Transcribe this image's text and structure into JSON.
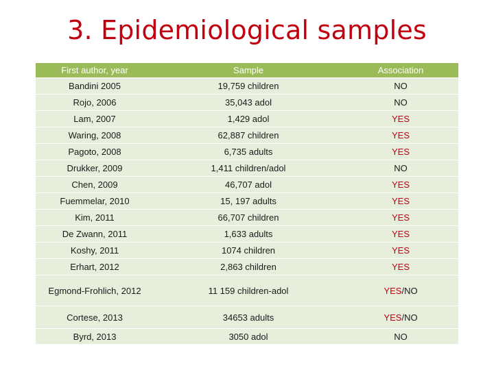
{
  "title": "3. Epidemiological samples",
  "colors": {
    "title": "#c0000f",
    "header_bg": "#9bbb59",
    "row_bg": "#e8eedc",
    "yes": "#c0000f"
  },
  "table": {
    "headers": [
      "First author, year",
      "Sample",
      "Association"
    ],
    "rows": [
      {
        "author": "Bandini 2005",
        "sample": "19,759 children",
        "yes": "",
        "sep": "",
        "no": "NO"
      },
      {
        "author": "Rojo, 2006",
        "sample": "35,043 adol",
        "yes": "",
        "sep": "",
        "no": "NO"
      },
      {
        "author": "Lam, 2007",
        "sample": "1,429 adol",
        "yes": "YES",
        "sep": "",
        "no": ""
      },
      {
        "author": "Waring, 2008",
        "sample": "62,887 children",
        "yes": "YES",
        "sep": "",
        "no": ""
      },
      {
        "author": "Pagoto, 2008",
        "sample": "6,735 adults",
        "yes": "YES",
        "sep": "",
        "no": ""
      },
      {
        "author": "Drukker, 2009",
        "sample": "1,411 children/adol",
        "yes": "",
        "sep": "",
        "no": "NO"
      },
      {
        "author": "Chen, 2009",
        "sample": "46,707 adol",
        "yes": "YES",
        "sep": "",
        "no": ""
      },
      {
        "author": "Fuemmelar, 2010",
        "sample": "15, 197 adults",
        "yes": "YES",
        "sep": "",
        "no": ""
      },
      {
        "author": "Kim, 2011",
        "sample": "66,707 children",
        "yes": "YES",
        "sep": "",
        "no": ""
      },
      {
        "author": "De Zwann, 2011",
        "sample": "1,633 adults",
        "yes": "YES",
        "sep": "",
        "no": ""
      },
      {
        "author": "Koshy, 2011",
        "sample": "1074 children",
        "yes": "YES",
        "sep": "",
        "no": ""
      },
      {
        "author": "Erhart, 2012",
        "sample": "2,863 children",
        "yes": "YES",
        "sep": "",
        "no": ""
      },
      {
        "author": "Egmond-Frohlich, 2012",
        "sample": "11 159 children-adol",
        "yes": "YES",
        "sep": "/",
        "no": "NO"
      },
      {
        "author": "Cortese, 2013",
        "sample": "34653 adults",
        "yes": "YES",
        "sep": "/",
        "no": "NO"
      },
      {
        "author": "Byrd, 2013",
        "sample": "3050 adol",
        "yes": "",
        "sep": "",
        "no": "NO"
      }
    ]
  }
}
